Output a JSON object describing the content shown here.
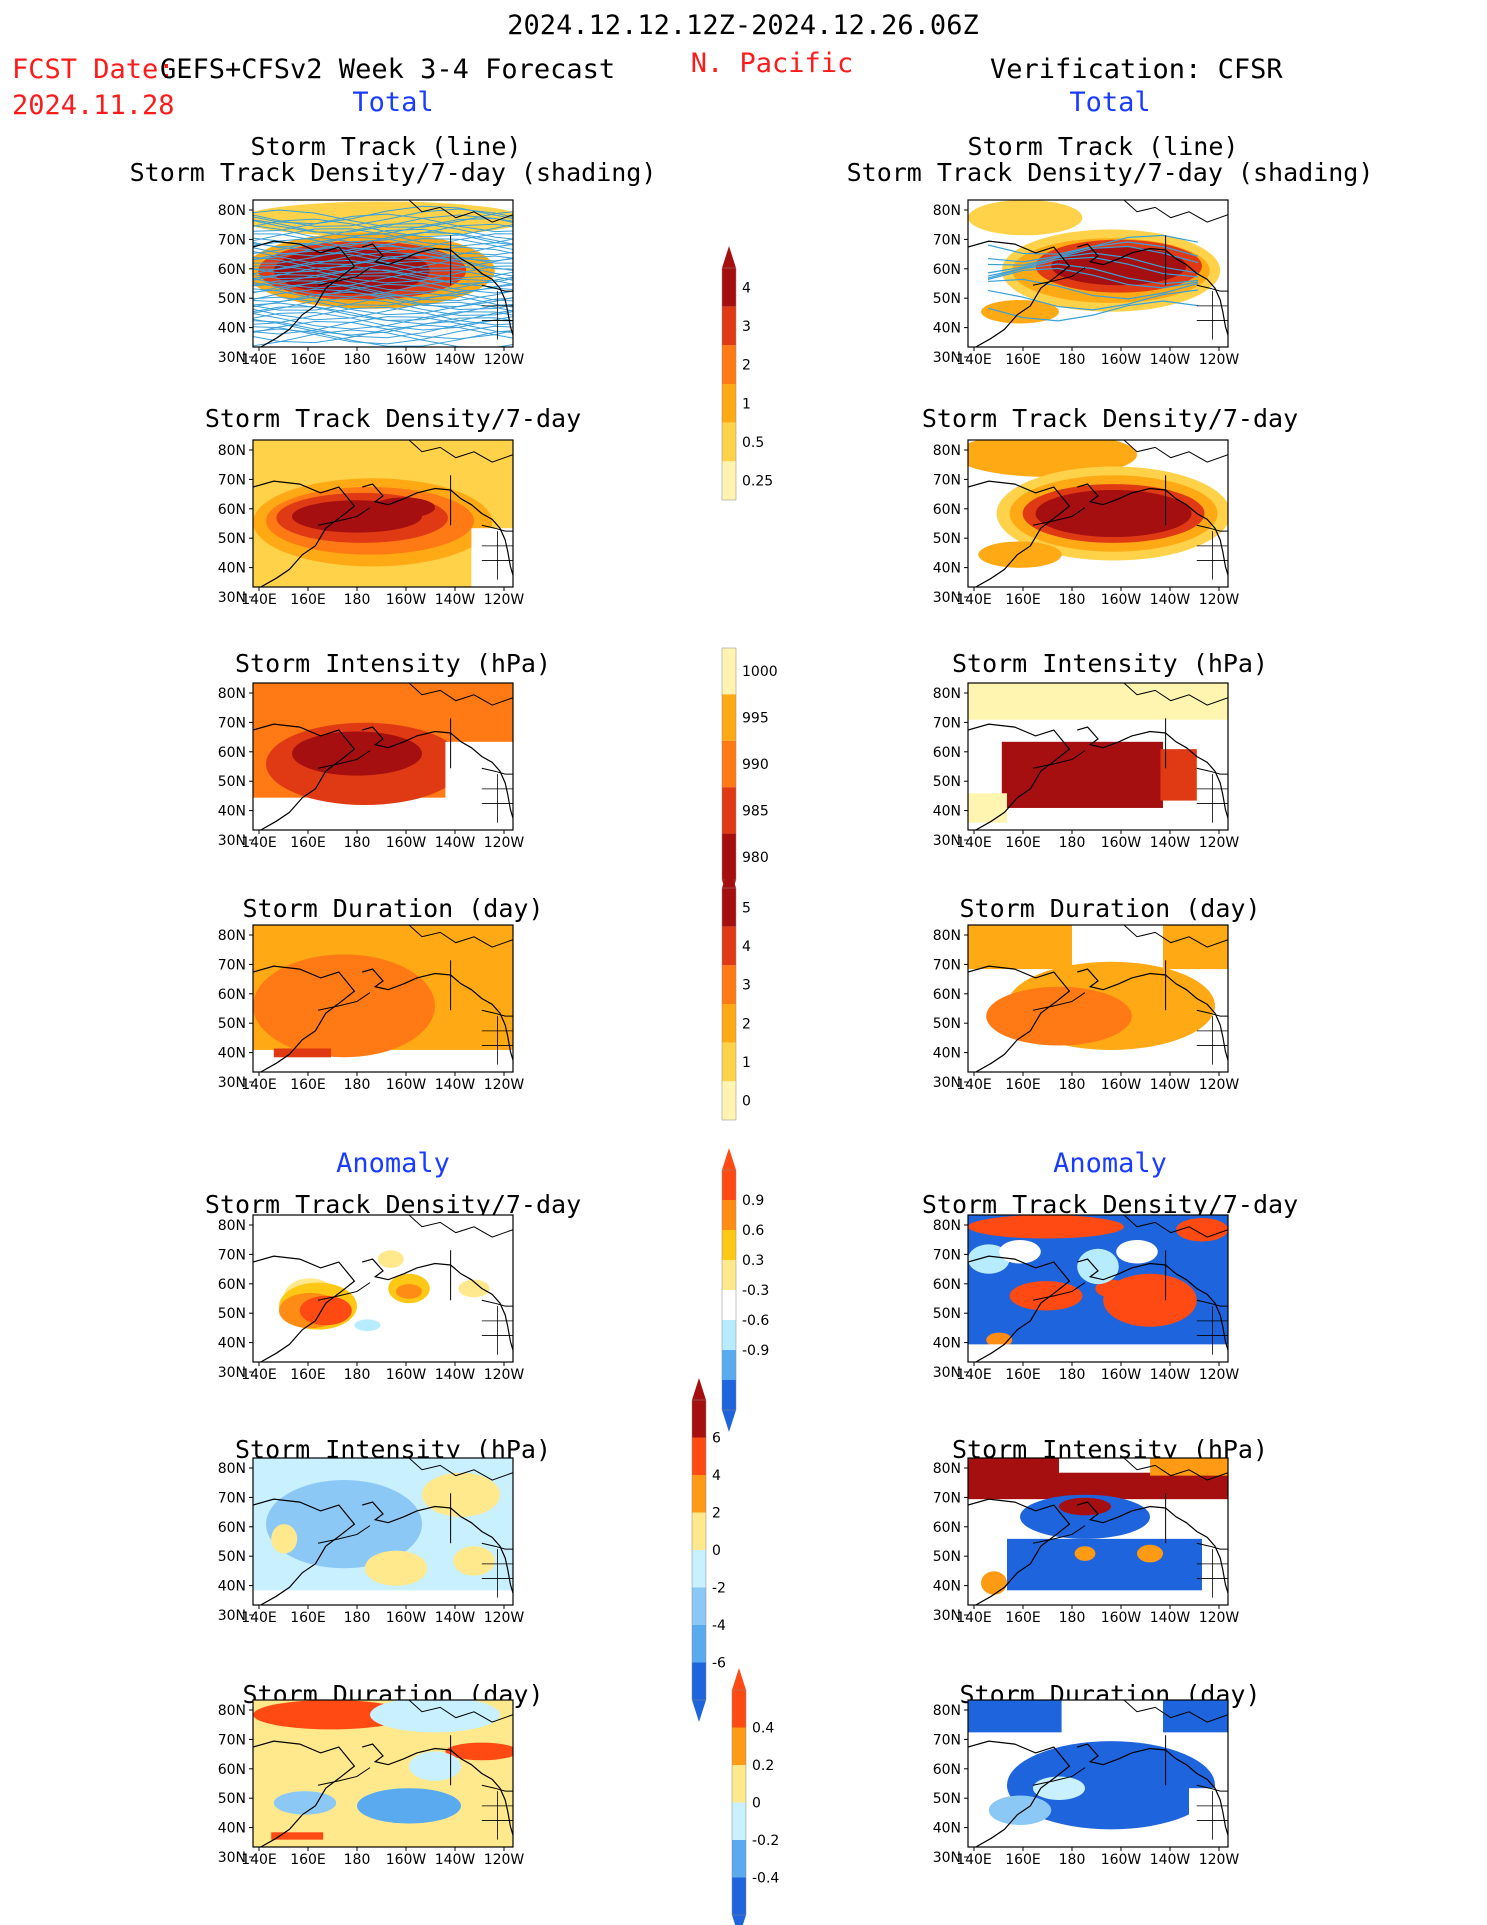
{
  "header": {
    "date_range": "2024.12.12.12Z-2024.12.26.06Z",
    "fcst_prefix": "FCST Date:",
    "fcst_model": "GEFS+CFSv2 Week 3-4 Forecast",
    "fcst_date": "2024.11.28",
    "region": "N. Pacific",
    "verification": "Verification: CFSR",
    "left_section": "Total",
    "right_section": "Total",
    "left_anomaly": "Anomaly",
    "right_anomaly": "Anomaly"
  },
  "titles": {
    "track_line": "Storm Track (line)",
    "track_shading": "Storm Track Density/7-day (shading)",
    "density": "Storm Track Density/7-day",
    "intensity": "Storm Intensity (hPa)",
    "duration": "Storm Duration (day)"
  },
  "axes": {
    "lon_labels": [
      "140E",
      "160E",
      "180",
      "160W",
      "140W",
      "120W"
    ],
    "lat_labels": [
      "80N",
      "70N",
      "60N",
      "50N",
      "40N",
      "30N"
    ]
  },
  "colorbars": [
    {
      "name": "density-total",
      "labels": [
        "4",
        "3",
        "2",
        "1",
        "0.5",
        "0.25"
      ],
      "colors": [
        "#a50f0f",
        "#e03a14",
        "#ff7a14",
        "#ffaa14",
        "#ffd24a",
        "#fff5b0"
      ]
    },
    {
      "name": "intensity-total",
      "labels": [
        "1000",
        "995",
        "990",
        "985",
        "980"
      ],
      "colors": [
        "#fff5b0",
        "#ffaa14",
        "#ff7a14",
        "#e03a14",
        "#a50f0f"
      ]
    },
    {
      "name": "duration-total",
      "labels": [
        "5",
        "4",
        "3",
        "2",
        "1",
        "0"
      ],
      "colors": [
        "#a50f0f",
        "#e03a14",
        "#ff7a14",
        "#ffaa14",
        "#ffd24a",
        "#fff5b0"
      ]
    },
    {
      "name": "density-anom",
      "labels": [
        "0.9",
        "0.6",
        "0.3",
        "-0.3",
        "-0.6",
        "-0.9"
      ],
      "colors": [
        "#ff4a14",
        "#ff8c14",
        "#ffc814",
        "#ffe98c",
        "#ffffff",
        "#b7ecff",
        "#5aaaf0",
        "#1e64dc"
      ]
    },
    {
      "name": "intensity-anom",
      "labels": [
        "6",
        "4",
        "2",
        "0",
        "-2",
        "-4",
        "-6"
      ],
      "colors": [
        "#a50f0f",
        "#ff4a14",
        "#ff9a14",
        "#ffe98c",
        "#c8f0ff",
        "#8cc8f5",
        "#5aaaf0",
        "#1e64dc"
      ]
    },
    {
      "name": "duration-anom",
      "labels": [
        "0.4",
        "0.2",
        "0",
        "-0.2",
        "-0.4"
      ],
      "colors": [
        "#ff4a14",
        "#ff9a14",
        "#ffe98c",
        "#c8f0ff",
        "#5aaaf0",
        "#1e64dc"
      ]
    }
  ],
  "colors": {
    "fcst_red": "#ff1a1a",
    "section_blue": "#1a3cff",
    "track_line": "#3aa0d8"
  }
}
